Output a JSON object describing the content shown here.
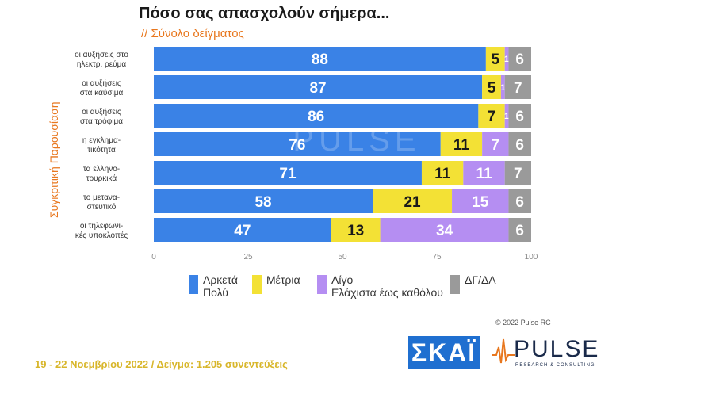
{
  "title": "Πόσο σας απασχολούν σήμερα...",
  "subtitle": "// Σύνολο δείγματος",
  "side_label": "Συγκριτική Παρουσίαση",
  "watermark": "PULSE",
  "colors": {
    "blue": "#3a82e6",
    "yellow": "#f3e135",
    "purple": "#b58ef2",
    "gray": "#9a9a9a",
    "orange": "#e8771e"
  },
  "chart_data": {
    "type": "bar",
    "orientation": "horizontal",
    "stacked": true,
    "xlim": [
      0,
      100
    ],
    "xticks": [
      "0",
      "25",
      "50",
      "75",
      "100"
    ],
    "categories": [
      [
        "οι αυξήσεις στο",
        "ηλεκτρ. ρεύμα"
      ],
      [
        "οι αυξήσεις",
        "στα καύσιμα"
      ],
      [
        "οι αυξήσεις",
        "στα τρόφιμα"
      ],
      [
        "η εγκλημα-",
        "τικότητα"
      ],
      [
        "τα ελληνο-",
        "τουρκικά"
      ],
      [
        "το μετανα-",
        "στευτικό"
      ],
      [
        "οι τηλεφωνι-",
        "κές υποκλοπές"
      ]
    ],
    "series": [
      {
        "name": "Αρκετά Πολύ",
        "values": [
          88,
          87,
          86,
          76,
          71,
          58,
          47
        ]
      },
      {
        "name": "Μέτρια",
        "values": [
          5,
          5,
          7,
          11,
          11,
          21,
          13
        ]
      },
      {
        "name": "Λίγο Ελάχιστα έως καθόλου",
        "values": [
          1,
          1,
          1,
          7,
          11,
          15,
          34
        ]
      },
      {
        "name": "ΔΓ/ΔΑ",
        "values": [
          6,
          7,
          6,
          6,
          7,
          6,
          6
        ]
      }
    ]
  },
  "legend": [
    {
      "lines": [
        "Αρκετά",
        "Πολύ"
      ],
      "color": "#3a82e6"
    },
    {
      "lines": [
        "Μέτρια"
      ],
      "color": "#f3e135"
    },
    {
      "lines": [
        "Λίγο",
        "Ελάχιστα έως καθόλου"
      ],
      "color": "#b58ef2"
    },
    {
      "lines": [
        "ΔΓ/ΔΑ"
      ],
      "color": "#9a9a9a"
    }
  ],
  "footer": "19 - 22 Νοεμβρίου  2022  /  Δείγμα:  1.205 συνεντεύξεις",
  "copyright": "© 2022 Pulse RC",
  "logos": {
    "skai": "ΣΚΑΪ",
    "pulse": "PULSE",
    "pulse_sub": "RESEARCH & CONSULTING"
  }
}
